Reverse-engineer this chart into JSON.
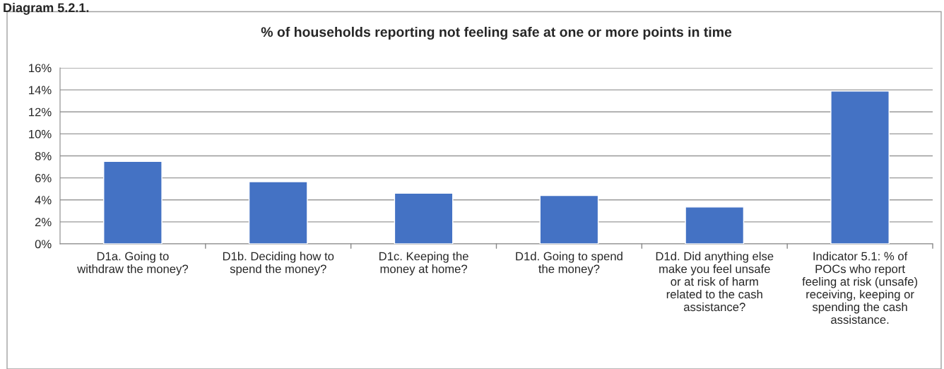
{
  "chart_data": {
    "type": "bar",
    "title": "% of households reporting not feeling safe at one or more points in time",
    "annotations": [
      "Diagram 5.2.1."
    ],
    "categories": [
      "D1a. Going to\nwithdraw the money?",
      "D1b. Deciding how to\nspend the money?",
      "D1c. Keeping the\nmoney at home?",
      "D1d. Going to spend\nthe money?",
      "D1d. Did anything else\nmake you feel unsafe\nor at risk of harm\nrelated to the cash\nassistance?",
      "Indicator 5.1: % of\nPOCs who report\nfeeling at risk (unsafe)\nreceiving, keeping or\nspending the cash\nassistance."
    ],
    "values": [
      7.5,
      5.65,
      4.6,
      4.4,
      3.35,
      13.9
    ],
    "color": "#4472c4",
    "ylim": [
      0,
      16
    ],
    "yticks": [
      {
        "value": 0,
        "label": "0%"
      },
      {
        "value": 2,
        "label": "2%"
      },
      {
        "value": 4,
        "label": "4%"
      },
      {
        "value": 6,
        "label": "6%"
      },
      {
        "value": 8,
        "label": "8%"
      },
      {
        "value": 10,
        "label": "10%"
      },
      {
        "value": 12,
        "label": "12%"
      },
      {
        "value": 14,
        "label": "14%"
      },
      {
        "value": 16,
        "label": "16%"
      }
    ],
    "grid": "y",
    "legend": false
  }
}
